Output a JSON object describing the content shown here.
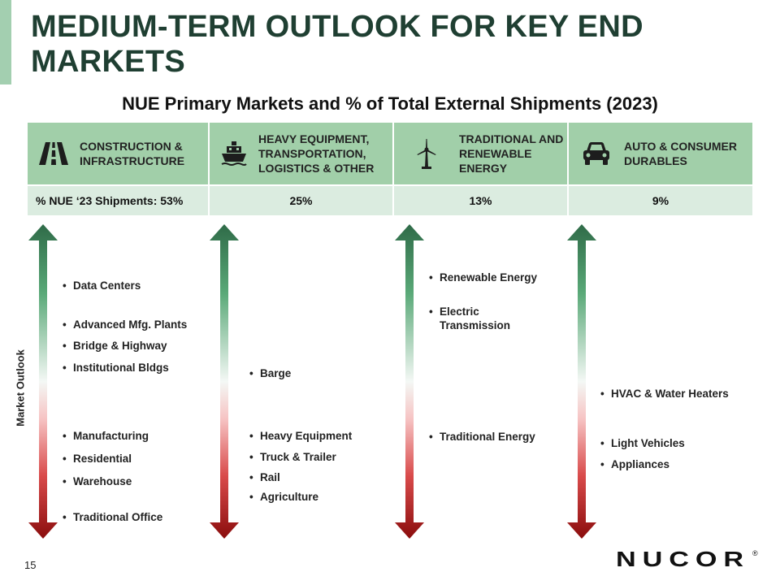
{
  "title": "MEDIUM-TERM OUTLOOK FOR KEY END MARKETS",
  "subtitle": "NUE Primary Markets and % of Total External Shipments (2023)",
  "columns": [
    {
      "label": "CONSTRUCTION & INFRASTRUCTURE",
      "icon": "road-icon",
      "pct": "53%"
    },
    {
      "label": "HEAVY EQUIPMENT, TRANSPORTATION, LOGISTICS & OTHER",
      "icon": "ship-icon",
      "pct": "25%"
    },
    {
      "label": "TRADITIONAL AND RENEWABLE ENERGY",
      "icon": "wind-turbine-icon",
      "pct": "13%"
    },
    {
      "label": "AUTO & CONSUMER DURABLES",
      "icon": "car-icon",
      "pct": "9%"
    }
  ],
  "pct_row_label": "% NUE ‘23 Shipments:",
  "axis_label": "Market Outlook",
  "markets": {
    "col1": [
      "Data Centers",
      "Advanced Mfg. Plants",
      "Bridge & Highway",
      "Institutional Bldgs",
      "Manufacturing",
      "Residential",
      "Warehouse",
      "Traditional Office"
    ],
    "col2": [
      "Barge",
      "Heavy Equipment",
      "Truck & Trailer",
      "Rail",
      "Agriculture"
    ],
    "col3": [
      "Renewable Energy",
      "Electric Transmission",
      "Traditional Energy"
    ],
    "col4": [
      "HVAC & Water Heaters",
      "Light Vehicles",
      "Appliances"
    ]
  },
  "colors": {
    "title": "#1f3f32",
    "header_fill": "#a1cfa9",
    "pct_fill": "#dbece0",
    "arrow_top": "#2f6b48",
    "arrow_bottom": "#8b0d0d"
  },
  "page_number": "15",
  "logo_text": "NUCOR",
  "logo_mark": "®"
}
